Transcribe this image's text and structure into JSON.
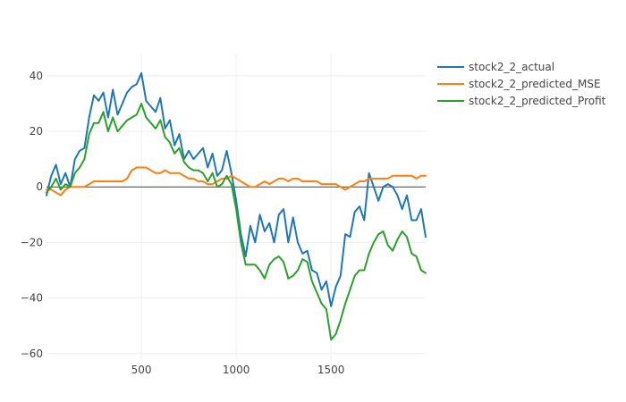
{
  "chart_data": {
    "type": "line",
    "title": "",
    "xlabel": "",
    "ylabel": "",
    "xlim": [
      0,
      1999
    ],
    "ylim": [
      -62,
      48
    ],
    "x_ticks": [
      500,
      1000,
      1500
    ],
    "y_ticks": [
      -60,
      -40,
      -20,
      0,
      20,
      40
    ],
    "grid": true,
    "zero_line": true,
    "legend_position": "top-right",
    "series": [
      {
        "name": "stock2_2_actual",
        "color": "#1f77b4",
        "x": [
          0,
          25,
          50,
          75,
          100,
          125,
          150,
          175,
          200,
          225,
          250,
          275,
          300,
          325,
          350,
          375,
          400,
          425,
          450,
          475,
          500,
          525,
          550,
          575,
          600,
          625,
          650,
          675,
          700,
          725,
          750,
          775,
          800,
          825,
          850,
          875,
          900,
          925,
          950,
          975,
          1000,
          1025,
          1050,
          1075,
          1100,
          1125,
          1150,
          1175,
          1200,
          1225,
          1250,
          1275,
          1300,
          1325,
          1350,
          1375,
          1400,
          1425,
          1450,
          1475,
          1500,
          1525,
          1550,
          1575,
          1600,
          1625,
          1650,
          1675,
          1700,
          1725,
          1750,
          1775,
          1800,
          1825,
          1850,
          1875,
          1900,
          1925,
          1950,
          1975,
          1999
        ],
        "y": [
          -3,
          4,
          8,
          1,
          5,
          0,
          10,
          13,
          14,
          25,
          33,
          31,
          34,
          25,
          35,
          26,
          30,
          34,
          36,
          37,
          41,
          31,
          29,
          27,
          32,
          21,
          24,
          15,
          19,
          10,
          13,
          10,
          12,
          14,
          7,
          12,
          4,
          6,
          13,
          5,
          -5,
          -17,
          -25,
          -14,
          -20,
          -10,
          -16,
          -13,
          -20,
          -10,
          -8,
          -20,
          -11,
          -20,
          -24,
          -23,
          -30,
          -31,
          -37,
          -34,
          -43,
          -36,
          -32,
          -17,
          -18,
          -9,
          -7,
          -12,
          5,
          0,
          -5,
          0,
          1,
          0,
          -3,
          -8,
          -3,
          -12,
          -12,
          -8,
          -18
        ]
      },
      {
        "name": "stock2_2_predicted_MSE",
        "color": "#ff7f0e",
        "x": [
          0,
          25,
          50,
          75,
          100,
          125,
          150,
          175,
          200,
          225,
          250,
          275,
          300,
          325,
          350,
          375,
          400,
          425,
          450,
          475,
          500,
          525,
          550,
          575,
          600,
          625,
          650,
          675,
          700,
          725,
          750,
          775,
          800,
          825,
          850,
          875,
          900,
          925,
          950,
          975,
          1000,
          1025,
          1050,
          1075,
          1100,
          1125,
          1150,
          1175,
          1200,
          1225,
          1250,
          1275,
          1300,
          1325,
          1350,
          1375,
          1400,
          1425,
          1450,
          1475,
          1500,
          1525,
          1550,
          1575,
          1600,
          1625,
          1650,
          1675,
          1700,
          1725,
          1750,
          1775,
          1800,
          1825,
          1850,
          1875,
          1900,
          1925,
          1950,
          1975,
          1999
        ],
        "y": [
          -1,
          -1,
          -2,
          -3,
          -1,
          0,
          0,
          0,
          0,
          1,
          2,
          2,
          2,
          2,
          2,
          2,
          2,
          3,
          6,
          7,
          7,
          7,
          6,
          5,
          5,
          6,
          5,
          5,
          5,
          4,
          3,
          3,
          2,
          2,
          1,
          1,
          2,
          3,
          3,
          4,
          3,
          2,
          1,
          0,
          0,
          1,
          2,
          1,
          2,
          3,
          3,
          2,
          3,
          3,
          2,
          2,
          2,
          2,
          1,
          1,
          1,
          1,
          0,
          -1,
          0,
          1,
          2,
          2,
          3,
          3,
          3,
          3,
          3,
          4,
          4,
          4,
          4,
          4,
          3,
          4,
          4
        ]
      },
      {
        "name": "stock2_2_predicted_Profit",
        "color": "#2ca02c",
        "x": [
          0,
          25,
          50,
          75,
          100,
          125,
          150,
          175,
          200,
          225,
          250,
          275,
          300,
          325,
          350,
          375,
          400,
          425,
          450,
          475,
          500,
          525,
          550,
          575,
          600,
          625,
          650,
          675,
          700,
          725,
          750,
          775,
          800,
          825,
          850,
          875,
          900,
          925,
          950,
          975,
          1000,
          1025,
          1050,
          1075,
          1100,
          1125,
          1150,
          1175,
          1200,
          1225,
          1250,
          1275,
          1300,
          1325,
          1350,
          1375,
          1400,
          1425,
          1450,
          1475,
          1500,
          1525,
          1550,
          1575,
          1600,
          1625,
          1650,
          1675,
          1700,
          1725,
          1750,
          1775,
          1800,
          1825,
          1850,
          1875,
          1900,
          1925,
          1950,
          1975,
          1999
        ],
        "y": [
          -2,
          0,
          3,
          -1,
          1,
          0,
          5,
          7,
          10,
          19,
          23,
          23,
          27,
          20,
          25,
          20,
          22,
          24,
          25,
          26,
          30,
          25,
          23,
          21,
          24,
          18,
          16,
          12,
          14,
          9,
          7,
          6,
          6,
          5,
          2,
          5,
          0,
          1,
          4,
          1,
          -8,
          -20,
          -28,
          -28,
          -28,
          -30,
          -33,
          -28,
          -26,
          -25,
          -27,
          -33,
          -32,
          -30,
          -26,
          -27,
          -34,
          -38,
          -42,
          -44,
          -55,
          -53,
          -48,
          -42,
          -37,
          -32,
          -30,
          -30,
          -24,
          -20,
          -17,
          -16,
          -21,
          -23,
          -19,
          -16,
          -18,
          -24,
          -25,
          -30,
          -31
        ]
      }
    ]
  }
}
